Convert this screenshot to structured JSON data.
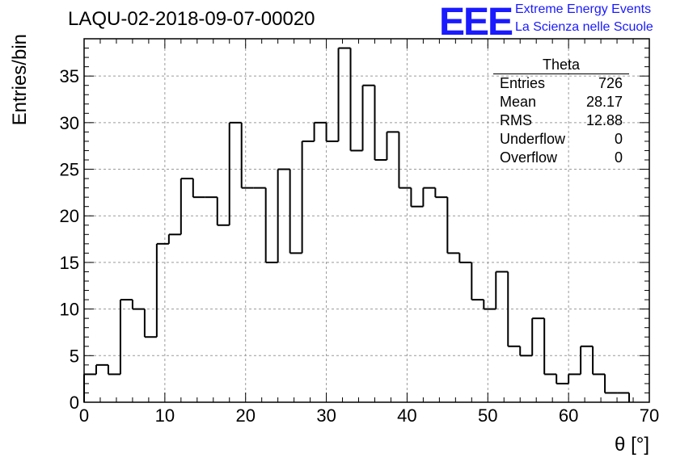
{
  "header": {
    "title": "LAQU-02-2018-09-07-00020",
    "logo_text": "EEE",
    "logo_line1": "Extreme Energy Events",
    "logo_line2": "La Scienza nelle Scuole"
  },
  "stats_box": {
    "title": "Theta",
    "rows": [
      {
        "label": "Entries",
        "value": "726"
      },
      {
        "label": "Mean",
        "value": "28.17"
      },
      {
        "label": "RMS",
        "value": "12.88"
      },
      {
        "label": "Underflow",
        "value": "0"
      },
      {
        "label": "Overflow",
        "value": "0"
      }
    ]
  },
  "colors": {
    "logo": "#1a1aff",
    "line": "#000000",
    "grid": "#9a9a9a"
  },
  "chart_data": {
    "type": "bar",
    "style": "step-histogram",
    "title": "LAQU-02-2018-09-07-00020",
    "xlabel": "θ [°]",
    "ylabel": "Entries/bin",
    "xlim": [
      0,
      70
    ],
    "ylim": [
      0,
      39
    ],
    "bin_width": 1.5,
    "x_ticks": [
      "0",
      "10",
      "20",
      "30",
      "40",
      "50",
      "60",
      "70"
    ],
    "y_ticks": [
      "0",
      "5",
      "10",
      "15",
      "20",
      "25",
      "30",
      "35"
    ],
    "grid": true,
    "bin_edges_start": 0,
    "values": [
      3,
      4,
      3,
      11,
      10,
      7,
      17,
      18,
      24,
      22,
      22,
      19,
      30,
      23,
      23,
      15,
      25,
      16,
      28,
      30,
      28,
      38,
      27,
      34,
      26,
      29,
      23,
      21,
      23,
      22,
      16,
      15,
      11,
      10,
      14,
      6,
      5,
      9,
      3,
      2,
      3,
      6,
      3,
      1,
      1,
      0,
      0
    ]
  }
}
